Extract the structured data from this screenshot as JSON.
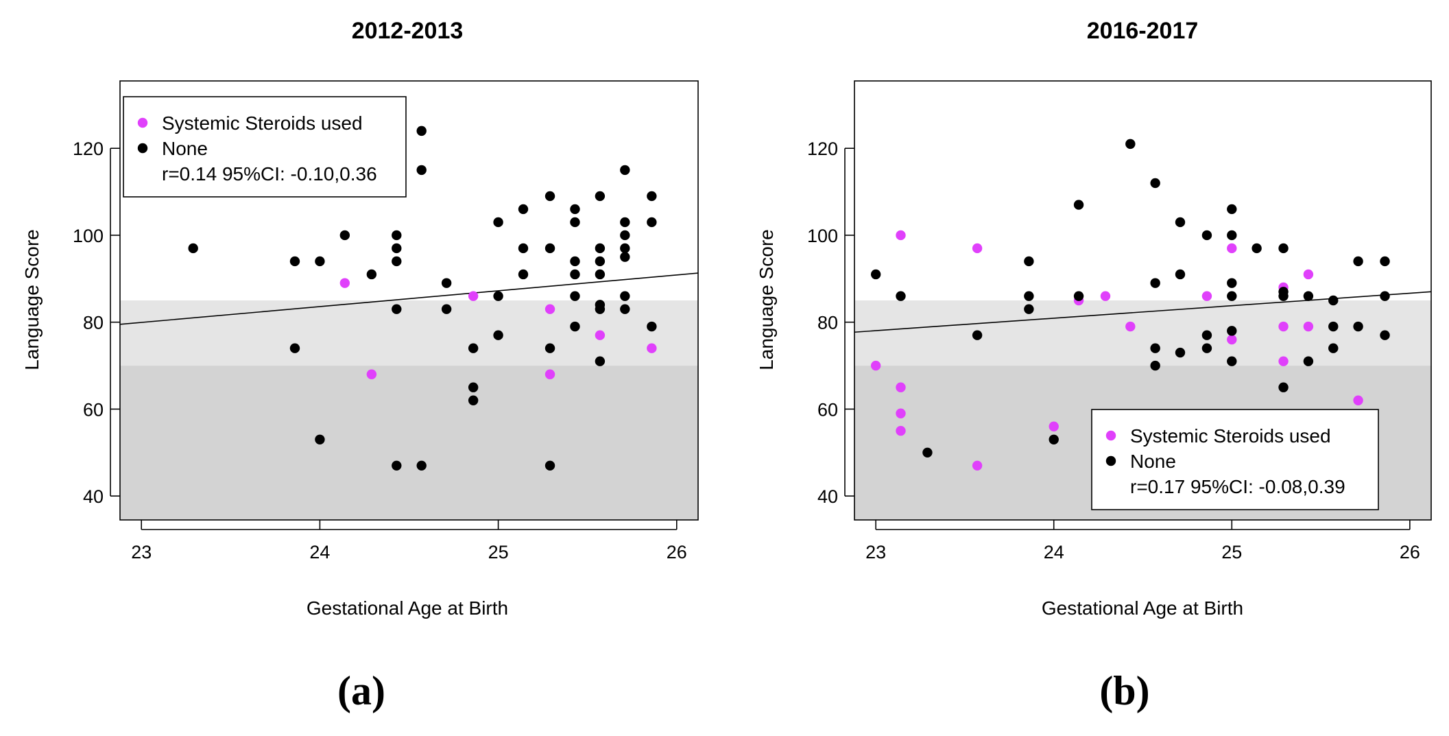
{
  "chart_data": [
    {
      "type": "scatter",
      "panel_label": "(a)",
      "title": "2012-2013",
      "xlabel": "Gestational Age at Birth",
      "ylabel": "Language Score",
      "xlim": [
        22.88,
        26.12
      ],
      "ylim": [
        34.5,
        135.5
      ],
      "xticks": [
        "23",
        "24",
        "25",
        "26"
      ],
      "yticks": [
        "40",
        "60",
        "80",
        "100",
        "120"
      ],
      "bands": [
        {
          "from": 34.5,
          "to": 70,
          "color": "#d3d3d3"
        },
        {
          "from": 70,
          "to": 85,
          "color": "#e5e5e5"
        }
      ],
      "trend": {
        "x": [
          22.88,
          26.12
        ],
        "y": [
          79.5,
          91.3
        ]
      },
      "legend": {
        "position": "top-left",
        "entries": [
          {
            "label": "Systemic Steroids used",
            "color": "#e040fb"
          },
          {
            "label": "None",
            "color": "#000000"
          }
        ],
        "stat": "r=0.14 95%CI: -0.10,0.36"
      },
      "series": [
        {
          "name": "Systemic Steroids used",
          "color": "#e040fb",
          "points": [
            [
              24.14,
              89
            ],
            [
              24.29,
              68
            ],
            [
              24.86,
              86
            ],
            [
              25.29,
              83
            ],
            [
              25.29,
              68
            ],
            [
              25.57,
              77
            ],
            [
              25.86,
              74
            ]
          ]
        },
        {
          "name": "None",
          "color": "#000000",
          "points": [
            [
              23.29,
              97
            ],
            [
              23.86,
              94
            ],
            [
              23.86,
              74
            ],
            [
              24.0,
              94
            ],
            [
              24.0,
              53
            ],
            [
              24.14,
              100
            ],
            [
              24.29,
              91
            ],
            [
              24.43,
              100
            ],
            [
              24.43,
              97
            ],
            [
              24.43,
              94
            ],
            [
              24.43,
              83
            ],
            [
              24.43,
              47
            ],
            [
              24.57,
              124
            ],
            [
              24.57,
              115
            ],
            [
              24.57,
              47
            ],
            [
              24.71,
              89
            ],
            [
              24.71,
              83
            ],
            [
              24.86,
              74
            ],
            [
              24.86,
              65
            ],
            [
              24.86,
              62
            ],
            [
              25.0,
              103
            ],
            [
              25.0,
              86
            ],
            [
              25.0,
              77
            ],
            [
              25.14,
              106
            ],
            [
              25.14,
              97
            ],
            [
              25.14,
              91
            ],
            [
              25.29,
              109
            ],
            [
              25.29,
              97
            ],
            [
              25.29,
              74
            ],
            [
              25.29,
              47
            ],
            [
              25.43,
              106
            ],
            [
              25.43,
              103
            ],
            [
              25.43,
              94
            ],
            [
              25.43,
              91
            ],
            [
              25.43,
              86
            ],
            [
              25.43,
              79
            ],
            [
              25.57,
              109
            ],
            [
              25.57,
              97
            ],
            [
              25.57,
              94
            ],
            [
              25.57,
              91
            ],
            [
              25.57,
              84
            ],
            [
              25.57,
              83
            ],
            [
              25.57,
              71
            ],
            [
              25.71,
              115
            ],
            [
              25.71,
              103
            ],
            [
              25.71,
              100
            ],
            [
              25.71,
              97
            ],
            [
              25.71,
              95
            ],
            [
              25.71,
              86
            ],
            [
              25.71,
              83
            ],
            [
              25.86,
              109
            ],
            [
              25.86,
              103
            ],
            [
              25.86,
              79
            ]
          ]
        }
      ]
    },
    {
      "type": "scatter",
      "panel_label": "(b)",
      "title": "2016-2017",
      "xlabel": "Gestational Age at Birth",
      "ylabel": "Language Score",
      "xlim": [
        22.88,
        26.12
      ],
      "ylim": [
        34.5,
        135.5
      ],
      "xticks": [
        "23",
        "24",
        "25",
        "26"
      ],
      "yticks": [
        "40",
        "60",
        "80",
        "100",
        "120"
      ],
      "bands": [
        {
          "from": 34.5,
          "to": 70,
          "color": "#d3d3d3"
        },
        {
          "from": 70,
          "to": 85,
          "color": "#e5e5e5"
        }
      ],
      "trend": {
        "x": [
          22.88,
          26.12
        ],
        "y": [
          77.7,
          87.0
        ]
      },
      "legend": {
        "position": "bottom-right",
        "entries": [
          {
            "label": "Systemic Steroids used",
            "color": "#e040fb"
          },
          {
            "label": "None",
            "color": "#000000"
          }
        ],
        "stat": "r=0.17 95%CI: -0.08,0.39"
      },
      "series": [
        {
          "name": "Systemic Steroids used",
          "color": "#e040fb",
          "points": [
            [
              23.0,
              70
            ],
            [
              23.14,
              100
            ],
            [
              23.14,
              65
            ],
            [
              23.14,
              59
            ],
            [
              23.14,
              55
            ],
            [
              23.57,
              97
            ],
            [
              23.57,
              47
            ],
            [
              24.0,
              56
            ],
            [
              24.14,
              85
            ],
            [
              24.29,
              86
            ],
            [
              24.43,
              79
            ],
            [
              24.86,
              86
            ],
            [
              25.0,
              97
            ],
            [
              25.0,
              76
            ],
            [
              25.29,
              88
            ],
            [
              25.29,
              79
            ],
            [
              25.29,
              71
            ],
            [
              25.43,
              91
            ],
            [
              25.43,
              79
            ],
            [
              25.71,
              62
            ]
          ]
        },
        {
          "name": "None",
          "color": "#000000",
          "points": [
            [
              23.0,
              91
            ],
            [
              23.14,
              86
            ],
            [
              23.29,
              50
            ],
            [
              23.57,
              77
            ],
            [
              23.86,
              94
            ],
            [
              23.86,
              86
            ],
            [
              23.86,
              83
            ],
            [
              24.0,
              53
            ],
            [
              24.14,
              107
            ],
            [
              24.14,
              86
            ],
            [
              24.43,
              121
            ],
            [
              24.57,
              112
            ],
            [
              24.57,
              89
            ],
            [
              24.57,
              74
            ],
            [
              24.57,
              70
            ],
            [
              24.71,
              103
            ],
            [
              24.71,
              91
            ],
            [
              24.71,
              73
            ],
            [
              24.86,
              100
            ],
            [
              24.86,
              77
            ],
            [
              24.86,
              74
            ],
            [
              25.0,
              106
            ],
            [
              25.0,
              100
            ],
            [
              25.0,
              89
            ],
            [
              25.0,
              86
            ],
            [
              25.0,
              78
            ],
            [
              25.0,
              71
            ],
            [
              25.14,
              97
            ],
            [
              25.29,
              97
            ],
            [
              25.29,
              87
            ],
            [
              25.29,
              86
            ],
            [
              25.29,
              65
            ],
            [
              25.43,
              86
            ],
            [
              25.43,
              71
            ],
            [
              25.57,
              85
            ],
            [
              25.57,
              79
            ],
            [
              25.57,
              74
            ],
            [
              25.71,
              94
            ],
            [
              25.71,
              79
            ],
            [
              25.86,
              94
            ],
            [
              25.86,
              86
            ],
            [
              25.86,
              77
            ]
          ]
        }
      ]
    }
  ]
}
